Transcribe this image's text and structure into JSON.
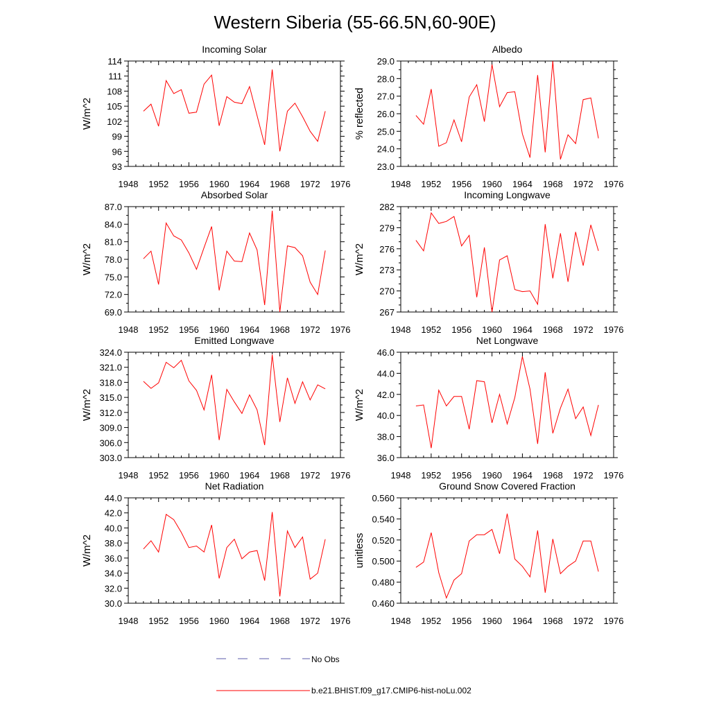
{
  "page_title": "Western Siberia (55-66.5N,60-90E)",
  "legend": {
    "items": [
      {
        "label": "No Obs",
        "style": "dashed",
        "color": "#5a5aa8"
      },
      {
        "label": "b.e21.BHIST.f09_g17.CMIP6-hist-noLu.002",
        "style": "solid",
        "color": "#ff0000"
      }
    ]
  },
  "series_color": "#ff0000",
  "chart_data": [
    {
      "type": "line",
      "title": "Incoming Solar",
      "xlabel": "",
      "ylabel": "W/m^2",
      "xlim": [
        1948,
        1976
      ],
      "ylim": [
        93,
        114
      ],
      "xticks": [
        1948,
        1952,
        1956,
        1960,
        1964,
        1968,
        1972,
        1976
      ],
      "yticks": [
        "93",
        "96",
        "99",
        "102",
        "105",
        "108",
        "111",
        "114"
      ],
      "yminor": [
        94,
        95,
        97,
        98,
        100,
        101,
        103,
        104,
        106,
        107,
        109,
        110,
        112,
        113
      ],
      "grid": false,
      "series": [
        {
          "x": [
            1950,
            1951,
            1952,
            1953,
            1954,
            1955,
            1956,
            1957,
            1958,
            1959,
            1960,
            1961,
            1962,
            1963,
            1964,
            1965,
            1966,
            1967,
            1968,
            1969,
            1970,
            1971,
            1972,
            1973,
            1974
          ],
          "y": [
            104.0,
            105.4,
            101.0,
            110.1,
            107.5,
            108.3,
            103.6,
            103.8,
            109.4,
            111.2,
            101.1,
            106.9,
            105.8,
            105.5,
            108.9,
            103.1,
            97.3,
            112.3,
            96.0,
            104.0,
            105.6,
            102.9,
            100.0,
            98.0,
            104.0
          ]
        }
      ]
    },
    {
      "type": "line",
      "title": "Albedo",
      "xlabel": "",
      "ylabel": "% reflected",
      "xlim": [
        1948,
        1976
      ],
      "ylim": [
        23.0,
        29.0
      ],
      "xticks": [
        1948,
        1952,
        1956,
        1960,
        1964,
        1968,
        1972,
        1976
      ],
      "yticks": [
        "23.0",
        "24.0",
        "25.0",
        "26.0",
        "27.0",
        "28.0",
        "29.0"
      ],
      "yminor": [
        23.5,
        24.5,
        25.5,
        26.5,
        27.5,
        28.5
      ],
      "grid": false,
      "series": [
        {
          "x": [
            1950,
            1951,
            1952,
            1953,
            1954,
            1955,
            1956,
            1957,
            1958,
            1959,
            1960,
            1961,
            1962,
            1963,
            1964,
            1965,
            1966,
            1967,
            1968,
            1969,
            1970,
            1971,
            1972,
            1973,
            1974
          ],
          "y": [
            25.9,
            25.4,
            27.4,
            24.15,
            24.35,
            25.65,
            24.4,
            26.95,
            27.65,
            25.55,
            28.8,
            26.4,
            27.2,
            27.25,
            24.85,
            23.5,
            28.2,
            23.8,
            29.0,
            23.4,
            24.8,
            24.3,
            26.8,
            26.9,
            24.6
          ]
        }
      ]
    },
    {
      "type": "line",
      "title": "Absorbed Solar",
      "xlabel": "",
      "ylabel": "W/m^2",
      "xlim": [
        1948,
        1976
      ],
      "ylim": [
        69.0,
        87.0
      ],
      "xticks": [
        1948,
        1952,
        1956,
        1960,
        1964,
        1968,
        1972,
        1976
      ],
      "yticks": [
        "69.0",
        "72.0",
        "75.0",
        "78.0",
        "81.0",
        "84.0",
        "87.0"
      ],
      "yminor": [
        70.5,
        73.5,
        76.5,
        79.5,
        82.5,
        85.5
      ],
      "grid": false,
      "series": [
        {
          "x": [
            1950,
            1951,
            1952,
            1953,
            1954,
            1955,
            1956,
            1957,
            1958,
            1959,
            1960,
            1961,
            1962,
            1963,
            1964,
            1965,
            1966,
            1967,
            1968,
            1969,
            1970,
            1971,
            1972,
            1973,
            1974
          ],
          "y": [
            78.1,
            79.4,
            73.7,
            84.2,
            82.0,
            81.3,
            79.1,
            76.3,
            80.0,
            83.6,
            72.7,
            79.4,
            77.7,
            77.6,
            82.5,
            79.6,
            70.2,
            86.3,
            69.0,
            80.3,
            80.0,
            78.6,
            74.1,
            72.0,
            79.5
          ]
        }
      ]
    },
    {
      "type": "line",
      "title": "Incoming Longwave",
      "xlabel": "",
      "ylabel": "W/m^2",
      "xlim": [
        1948,
        1976
      ],
      "ylim": [
        267,
        282
      ],
      "xticks": [
        1948,
        1952,
        1956,
        1960,
        1964,
        1968,
        1972,
        1976
      ],
      "yticks": [
        "267",
        "270",
        "273",
        "276",
        "279",
        "282"
      ],
      "yminor": [
        268,
        269,
        271,
        272,
        274,
        275,
        277,
        278,
        280,
        281
      ],
      "grid": false,
      "series": [
        {
          "x": [
            1950,
            1951,
            1952,
            1953,
            1954,
            1955,
            1956,
            1957,
            1958,
            1959,
            1960,
            1961,
            1962,
            1963,
            1964,
            1965,
            1966,
            1967,
            1968,
            1969,
            1970,
            1971,
            1972,
            1973,
            1974
          ],
          "y": [
            277.2,
            275.7,
            281.1,
            279.6,
            279.9,
            280.6,
            276.4,
            277.9,
            269.1,
            276.2,
            267.0,
            274.4,
            275.0,
            270.2,
            269.9,
            270.0,
            268.1,
            279.5,
            271.8,
            278.2,
            271.3,
            278.4,
            273.6,
            279.4,
            275.7
          ]
        }
      ]
    },
    {
      "type": "line",
      "title": "Emitted Longwave",
      "xlabel": "",
      "ylabel": "W/m^2",
      "xlim": [
        1948,
        1976
      ],
      "ylim": [
        303.0,
        324.0
      ],
      "xticks": [
        1948,
        1952,
        1956,
        1960,
        1964,
        1968,
        1972,
        1976
      ],
      "yticks": [
        "303.0",
        "306.0",
        "309.0",
        "312.0",
        "315.0",
        "318.0",
        "321.0",
        "324.0"
      ],
      "yminor": [
        304.5,
        307.5,
        310.5,
        313.5,
        316.5,
        319.5,
        322.5
      ],
      "grid": false,
      "series": [
        {
          "x": [
            1950,
            1951,
            1952,
            1953,
            1954,
            1955,
            1956,
            1957,
            1958,
            1959,
            1960,
            1961,
            1962,
            1963,
            1964,
            1965,
            1966,
            1967,
            1968,
            1969,
            1970,
            1971,
            1972,
            1973,
            1974
          ],
          "y": [
            318.2,
            316.8,
            317.9,
            322.0,
            320.9,
            322.4,
            318.3,
            316.4,
            312.5,
            319.5,
            306.5,
            316.6,
            314.1,
            311.8,
            315.5,
            312.5,
            305.5,
            323.5,
            310.1,
            318.9,
            313.8,
            318.1,
            314.5,
            317.5,
            316.7
          ]
        }
      ]
    },
    {
      "type": "line",
      "title": "Net Longwave",
      "xlabel": "",
      "ylabel": "W/m^2",
      "xlim": [
        1948,
        1976
      ],
      "ylim": [
        36.0,
        46.0
      ],
      "xticks": [
        1948,
        1952,
        1956,
        1960,
        1964,
        1968,
        1972,
        1976
      ],
      "yticks": [
        "36.0",
        "38.0",
        "40.0",
        "42.0",
        "44.0",
        "46.0"
      ],
      "yminor": [
        37.0,
        39.0,
        41.0,
        43.0,
        45.0
      ],
      "grid": false,
      "series": [
        {
          "x": [
            1950,
            1951,
            1952,
            1953,
            1954,
            1955,
            1956,
            1957,
            1958,
            1959,
            1960,
            1961,
            1962,
            1963,
            1964,
            1965,
            1966,
            1967,
            1968,
            1969,
            1970,
            1971,
            1972,
            1973,
            1974
          ],
          "y": [
            40.9,
            41.0,
            36.9,
            42.4,
            40.9,
            41.8,
            41.8,
            38.7,
            43.3,
            43.2,
            39.3,
            42.0,
            39.2,
            41.7,
            45.6,
            42.5,
            37.3,
            44.1,
            38.3,
            40.7,
            42.5,
            39.7,
            40.8,
            38.1,
            41.0
          ]
        }
      ]
    },
    {
      "type": "line",
      "title": "Net Radiation",
      "xlabel": "",
      "ylabel": "W/m^2",
      "xlim": [
        1948,
        1976
      ],
      "ylim": [
        30.0,
        44.0
      ],
      "xticks": [
        1948,
        1952,
        1956,
        1960,
        1964,
        1968,
        1972,
        1976
      ],
      "yticks": [
        "30.0",
        "32.0",
        "34.0",
        "36.0",
        "38.0",
        "40.0",
        "42.0",
        "44.0"
      ],
      "yminor": [
        31.0,
        33.0,
        35.0,
        37.0,
        39.0,
        41.0,
        43.0
      ],
      "grid": false,
      "series": [
        {
          "x": [
            1950,
            1951,
            1952,
            1953,
            1954,
            1955,
            1956,
            1957,
            1958,
            1959,
            1960,
            1961,
            1962,
            1963,
            1964,
            1965,
            1966,
            1967,
            1968,
            1969,
            1970,
            1971,
            1972,
            1973,
            1974
          ],
          "y": [
            37.2,
            38.3,
            36.8,
            41.8,
            41.1,
            39.4,
            37.4,
            37.6,
            36.8,
            40.4,
            33.3,
            37.4,
            38.5,
            35.9,
            36.8,
            37.0,
            33.0,
            42.1,
            30.9,
            39.6,
            37.4,
            38.8,
            33.2,
            34.0,
            38.5
          ]
        }
      ]
    },
    {
      "type": "line",
      "title": "Ground Snow Covered Fraction",
      "xlabel": "",
      "ylabel": "unitless",
      "xlim": [
        1948,
        1976
      ],
      "ylim": [
        0.46,
        0.56
      ],
      "xticks": [
        1948,
        1952,
        1956,
        1960,
        1964,
        1968,
        1972,
        1976
      ],
      "yticks": [
        "0.460",
        "0.480",
        "0.500",
        "0.520",
        "0.540",
        "0.560"
      ],
      "yminor": [
        0.47,
        0.49,
        0.51,
        0.53,
        0.55
      ],
      "grid": false,
      "series": [
        {
          "x": [
            1950,
            1951,
            1952,
            1953,
            1954,
            1955,
            1956,
            1957,
            1958,
            1959,
            1960,
            1961,
            1962,
            1963,
            1964,
            1965,
            1966,
            1967,
            1968,
            1969,
            1970,
            1971,
            1972,
            1973,
            1974
          ],
          "y": [
            0.494,
            0.499,
            0.527,
            0.489,
            0.465,
            0.482,
            0.488,
            0.519,
            0.525,
            0.525,
            0.53,
            0.507,
            0.545,
            0.502,
            0.495,
            0.485,
            0.529,
            0.47,
            0.521,
            0.488,
            0.495,
            0.5,
            0.519,
            0.519,
            0.49
          ]
        }
      ]
    }
  ]
}
